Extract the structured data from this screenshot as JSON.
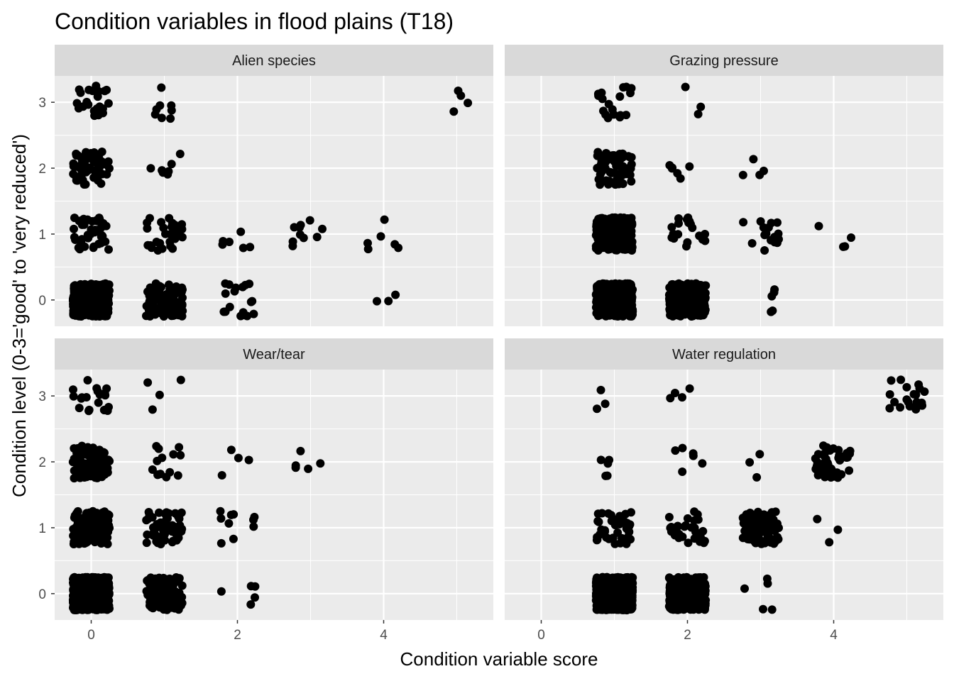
{
  "chart_data": {
    "type": "scatter",
    "title": "Condition variables in flood plains (T18)",
    "xlabel": "Condition variable score",
    "ylabel": "Condition level (0-3='good' to 'very reduced')",
    "xlim": [
      -0.5,
      5.5
    ],
    "ylim": [
      -0.4,
      3.4
    ],
    "x_ticks": [
      0,
      2,
      4
    ],
    "y_ticks": [
      0,
      1,
      2,
      3
    ],
    "jitter": 0.25,
    "point_color": "#000000",
    "panel_background": "#ebebeb",
    "strip_background": "#d9d9d9",
    "grid": true,
    "facets": [
      {
        "name": "Alien species",
        "groups": [
          {
            "x": 0,
            "y": 3,
            "n": 25
          },
          {
            "x": 1,
            "y": 3,
            "n": 8
          },
          {
            "x": 5,
            "y": 3,
            "n": 4
          },
          {
            "x": 0,
            "y": 2,
            "n": 60
          },
          {
            "x": 1,
            "y": 2,
            "n": 8
          },
          {
            "x": 0,
            "y": 1,
            "n": 45
          },
          {
            "x": 1,
            "y": 1,
            "n": 30
          },
          {
            "x": 2,
            "y": 1,
            "n": 6
          },
          {
            "x": 3,
            "y": 1,
            "n": 10
          },
          {
            "x": 4,
            "y": 1,
            "n": 6
          },
          {
            "x": 0,
            "y": 0,
            "n": 450
          },
          {
            "x": 1,
            "y": 0,
            "n": 130
          },
          {
            "x": 2,
            "y": 0,
            "n": 18
          },
          {
            "x": 4,
            "y": 0,
            "n": 3
          }
        ]
      },
      {
        "name": "Grazing pressure",
        "groups": [
          {
            "x": 1,
            "y": 3,
            "n": 18
          },
          {
            "x": 2,
            "y": 3,
            "n": 3
          },
          {
            "x": 1,
            "y": 2,
            "n": 60
          },
          {
            "x": 2,
            "y": 2,
            "n": 6
          },
          {
            "x": 3,
            "y": 2,
            "n": 4
          },
          {
            "x": 1,
            "y": 1,
            "n": 300
          },
          {
            "x": 2,
            "y": 1,
            "n": 20
          },
          {
            "x": 3,
            "y": 1,
            "n": 18
          },
          {
            "x": 4,
            "y": 1,
            "n": 4
          },
          {
            "x": 1,
            "y": 0,
            "n": 600
          },
          {
            "x": 2,
            "y": 0,
            "n": 260
          },
          {
            "x": 3,
            "y": 0,
            "n": 5
          }
        ]
      },
      {
        "name": "Wear/tear",
        "groups": [
          {
            "x": 0,
            "y": 3,
            "n": 20
          },
          {
            "x": 1,
            "y": 3,
            "n": 4
          },
          {
            "x": 0,
            "y": 2,
            "n": 90
          },
          {
            "x": 1,
            "y": 2,
            "n": 14
          },
          {
            "x": 2,
            "y": 2,
            "n": 4
          },
          {
            "x": 3,
            "y": 2,
            "n": 5
          },
          {
            "x": 0,
            "y": 1,
            "n": 150
          },
          {
            "x": 1,
            "y": 1,
            "n": 55
          },
          {
            "x": 2,
            "y": 1,
            "n": 10
          },
          {
            "x": 0,
            "y": 0,
            "n": 650
          },
          {
            "x": 1,
            "y": 0,
            "n": 120
          },
          {
            "x": 2,
            "y": 0,
            "n": 5
          }
        ]
      },
      {
        "name": "Water regulation",
        "groups": [
          {
            "x": 1,
            "y": 3,
            "n": 3
          },
          {
            "x": 2,
            "y": 3,
            "n": 4
          },
          {
            "x": 5,
            "y": 3,
            "n": 20
          },
          {
            "x": 1,
            "y": 2,
            "n": 5
          },
          {
            "x": 2,
            "y": 2,
            "n": 6
          },
          {
            "x": 3,
            "y": 2,
            "n": 3
          },
          {
            "x": 4,
            "y": 2,
            "n": 55
          },
          {
            "x": 1,
            "y": 1,
            "n": 40
          },
          {
            "x": 2,
            "y": 1,
            "n": 30
          },
          {
            "x": 3,
            "y": 1,
            "n": 110
          },
          {
            "x": 4,
            "y": 1,
            "n": 3
          },
          {
            "x": 1,
            "y": 0,
            "n": 650
          },
          {
            "x": 2,
            "y": 0,
            "n": 320
          },
          {
            "x": 3,
            "y": 0,
            "n": 5
          }
        ]
      }
    ]
  }
}
